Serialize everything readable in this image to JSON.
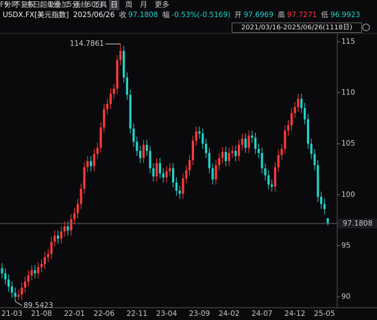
{
  "toolbar": {
    "periods": [
      "分时",
      "多日",
      "1分",
      "5分",
      "60分",
      "日",
      "周",
      "月",
      "更多"
    ],
    "tools": [
      "F9",
      "不复权",
      "超级叠加",
      "画线",
      "工具"
    ]
  },
  "quote": {
    "symbol": "USDX.FX[美元指数]",
    "date": "2025/06/26",
    "close_label": "收",
    "change_label": "幅",
    "change": "-0.53%(-0.5169)",
    "open_label": "开",
    "high_label": "高",
    "low_label": "低"
  },
  "range": "2021/03/16-2025/06/26(1118日)",
  "chart_data": {
    "type": "candlestick",
    "categories": [
      null,
      null,
      null,
      "21-03",
      null,
      null,
      null,
      null,
      null,
      null,
      null,
      null,
      "21-08",
      null,
      null,
      null,
      null,
      null,
      null,
      null,
      null,
      null,
      "22-01",
      null,
      null,
      null,
      null,
      null,
      null,
      null,
      null,
      "22-06",
      null,
      null,
      null,
      null,
      null,
      null,
      null,
      null,
      null,
      "22-11",
      null,
      null,
      null,
      null,
      null,
      null,
      null,
      null,
      "23-04",
      null,
      null,
      null,
      null,
      null,
      null,
      null,
      null,
      null,
      "23-09",
      null,
      null,
      null,
      null,
      null,
      null,
      null,
      null,
      "24-02",
      null,
      null,
      null,
      null,
      null,
      null,
      null,
      null,
      null,
      "24-07",
      null,
      null,
      null,
      null,
      null,
      null,
      null,
      null,
      null,
      "24-12",
      null,
      null,
      null,
      null,
      null,
      null,
      null,
      null,
      "25-05",
      null
    ],
    "open": [
      92.8,
      92.3,
      91.7,
      91.0,
      90.4,
      90.0,
      90.2,
      90.9,
      91.5,
      92.1,
      92.6,
      92.3,
      92.9,
      93.2,
      93.9,
      94.2,
      95.4,
      96.0,
      95.7,
      96.4,
      96.9,
      96.5,
      97.6,
      98.2,
      99.1,
      100.6,
      102.7,
      103.3,
      102.8,
      104.0,
      104.6,
      106.6,
      108.4,
      108.9,
      109.9,
      110.4,
      113.2,
      114.1,
      111.5,
      109.8,
      106.5,
      105.2,
      104.3,
      103.6,
      104.9,
      104.3,
      102.6,
      101.8,
      103.1,
      102.1,
      101.7,
      102.3,
      102.6,
      101.2,
      100.4,
      100.1,
      101.6,
      102.4,
      103.4,
      105.3,
      106.2,
      106.0,
      105.0,
      104.1,
      102.6,
      101.5,
      102.9,
      103.6,
      104.2,
      103.3,
      104.1,
      104.3,
      103.8,
      104.9,
      105.5,
      104.6,
      105.8,
      105.6,
      104.5,
      104.1,
      102.6,
      101.9,
      101.0,
      100.8,
      102.7,
      103.9,
      104.5,
      106.3,
      106.8,
      108.0,
      108.6,
      109.4,
      108.5,
      107.4,
      105.0,
      104.0,
      102.9,
      99.8,
      99.1,
      97.6969
    ],
    "high": [
      93.3,
      92.8,
      92.2,
      91.5,
      90.9,
      90.7,
      91.4,
      92.0,
      92.6,
      93.1,
      93.1,
      93.4,
      93.7,
      94.4,
      94.7,
      95.9,
      96.5,
      96.5,
      96.9,
      97.4,
      97.4,
      98.1,
      98.7,
      99.6,
      101.1,
      103.2,
      103.8,
      103.8,
      104.5,
      105.1,
      107.1,
      108.9,
      109.4,
      110.4,
      110.9,
      113.7,
      114.7861,
      114.6,
      112.0,
      110.3,
      107.0,
      105.7,
      104.8,
      105.4,
      105.4,
      104.8,
      103.1,
      103.6,
      103.6,
      102.6,
      102.8,
      103.1,
      103.1,
      101.7,
      100.9,
      102.1,
      102.9,
      103.9,
      105.8,
      106.7,
      106.7,
      106.5,
      105.5,
      104.6,
      103.1,
      103.4,
      104.1,
      104.7,
      104.7,
      104.6,
      104.8,
      104.8,
      105.4,
      106.0,
      106.0,
      106.3,
      106.3,
      106.1,
      105.0,
      104.6,
      103.1,
      102.4,
      101.5,
      103.2,
      104.4,
      105.0,
      106.8,
      107.3,
      108.5,
      109.1,
      109.9,
      109.9,
      109.0,
      107.9,
      105.5,
      104.5,
      103.4,
      100.3,
      99.6,
      97.7271
    ],
    "low": [
      91.8,
      91.2,
      90.5,
      89.9,
      89.5423,
      89.7,
      89.7,
      90.4,
      91.0,
      91.6,
      91.8,
      91.8,
      92.4,
      92.7,
      93.4,
      93.7,
      94.9,
      95.2,
      95.2,
      95.9,
      96.0,
      96.0,
      97.1,
      97.7,
      98.6,
      100.1,
      102.2,
      102.3,
      102.3,
      103.5,
      104.1,
      106.1,
      107.9,
      108.4,
      109.4,
      109.9,
      112.7,
      111.0,
      109.3,
      106.0,
      104.7,
      103.8,
      103.1,
      103.1,
      103.8,
      102.1,
      101.3,
      101.3,
      101.6,
      101.2,
      101.2,
      101.8,
      100.7,
      99.9,
      99.6,
      99.6,
      101.1,
      101.9,
      102.9,
      104.8,
      105.5,
      104.5,
      103.6,
      102.1,
      101.0,
      101.0,
      102.4,
      103.1,
      102.8,
      102.8,
      103.6,
      103.3,
      103.3,
      104.4,
      104.1,
      104.1,
      105.1,
      104.0,
      103.6,
      102.1,
      101.4,
      100.5,
      100.3,
      100.3,
      102.2,
      103.4,
      104.0,
      105.8,
      106.3,
      107.5,
      108.1,
      108.0,
      106.9,
      104.5,
      103.5,
      102.4,
      99.3,
      98.6,
      98.1,
      96.9923
    ],
    "close": [
      92.3,
      91.7,
      91.0,
      90.4,
      90.0,
      90.2,
      90.9,
      91.5,
      92.1,
      92.6,
      92.3,
      92.9,
      93.2,
      93.9,
      94.2,
      95.4,
      96.0,
      95.7,
      96.4,
      96.9,
      96.5,
      97.6,
      98.2,
      99.1,
      100.6,
      102.7,
      103.3,
      102.8,
      104.0,
      104.6,
      106.6,
      108.4,
      108.9,
      109.9,
      110.4,
      113.2,
      114.1,
      111.5,
      109.8,
      106.5,
      105.2,
      104.3,
      103.6,
      104.9,
      104.3,
      102.6,
      101.8,
      103.1,
      102.1,
      101.7,
      102.3,
      102.6,
      101.2,
      100.4,
      100.1,
      101.6,
      102.4,
      103.4,
      105.3,
      106.2,
      106.0,
      105.0,
      104.1,
      102.6,
      101.5,
      102.9,
      103.6,
      104.2,
      103.3,
      104.1,
      104.3,
      103.8,
      104.9,
      105.5,
      104.6,
      105.8,
      105.6,
      104.5,
      104.1,
      102.6,
      101.9,
      101.0,
      100.8,
      102.7,
      103.9,
      104.5,
      106.3,
      106.8,
      108.0,
      108.6,
      109.4,
      108.5,
      107.4,
      105.0,
      104.0,
      102.9,
      99.8,
      99.1,
      98.6,
      97.1808
    ],
    "up_color": "#ff3b3b",
    "down_color": "#22d3c9",
    "ylim": [
      88.93,
      115.74
    ],
    "yticks": [
      90,
      95,
      100,
      105,
      110,
      115
    ]
  }
}
